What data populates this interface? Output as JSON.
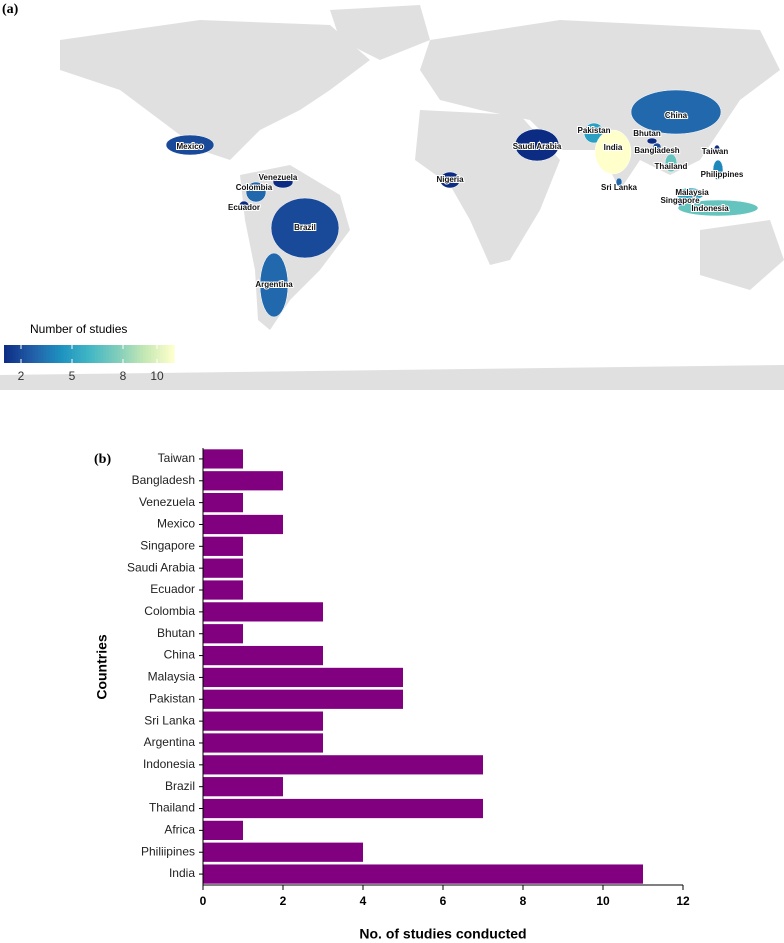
{
  "chart_data": [
    {
      "type": "map",
      "panel_label": "(a)",
      "legend_title": "Number of studies",
      "countries": [
        "Mexico",
        "Venezuela",
        "Colombia",
        "Ecuador",
        "Brazil",
        "Argentina",
        "Saudi Arabia",
        "Nigeria",
        "Pakistan",
        "India",
        "Bhutan",
        "China",
        "Bangladesh",
        "Sri Lanka",
        "Thailand",
        "Taiwan",
        "Philippines",
        "Malaysia",
        "Singapore",
        "Indonesia"
      ],
      "values": [
        2,
        1,
        3,
        1,
        2,
        3,
        1,
        1,
        5,
        11,
        1,
        3,
        2,
        3,
        7,
        1,
        4,
        5,
        1,
        7
      ],
      "colorbar_lim": [
        1,
        11
      ],
      "colorbar_ticks": [
        2,
        5,
        8,
        10
      ],
      "colors": [
        "#0c2c84",
        "#225ea8",
        "#1d91c0",
        "#41b6c4",
        "#7fcdbb",
        "#c7e9b4",
        "#ffffcc"
      ],
      "land_color": "#e0e0e0"
    },
    {
      "type": "bar",
      "panel_label": "(b)",
      "x_label": "No. of studies conducted",
      "y_label": "Countries",
      "categories": [
        "Taiwan",
        "Bangladesh",
        "Venezuela",
        "Mexico",
        "Singapore",
        "Saudi Arabia",
        "Ecuador",
        "Colombia",
        "Bhutan",
        "China",
        "Malaysia",
        "Pakistan",
        "Sri Lanka",
        "Argentina",
        "Indonesia",
        "Brazil",
        "Thailand",
        "Africa",
        "Philiipines",
        "India"
      ],
      "values": [
        1,
        2,
        1,
        2,
        1,
        1,
        1,
        3,
        1,
        3,
        5,
        5,
        3,
        3,
        7,
        2,
        7,
        1,
        4,
        11
      ],
      "color": "#800080",
      "xlim": [
        0,
        12
      ],
      "xticks": [
        0,
        2,
        4,
        6,
        8,
        10,
        12
      ]
    }
  ]
}
